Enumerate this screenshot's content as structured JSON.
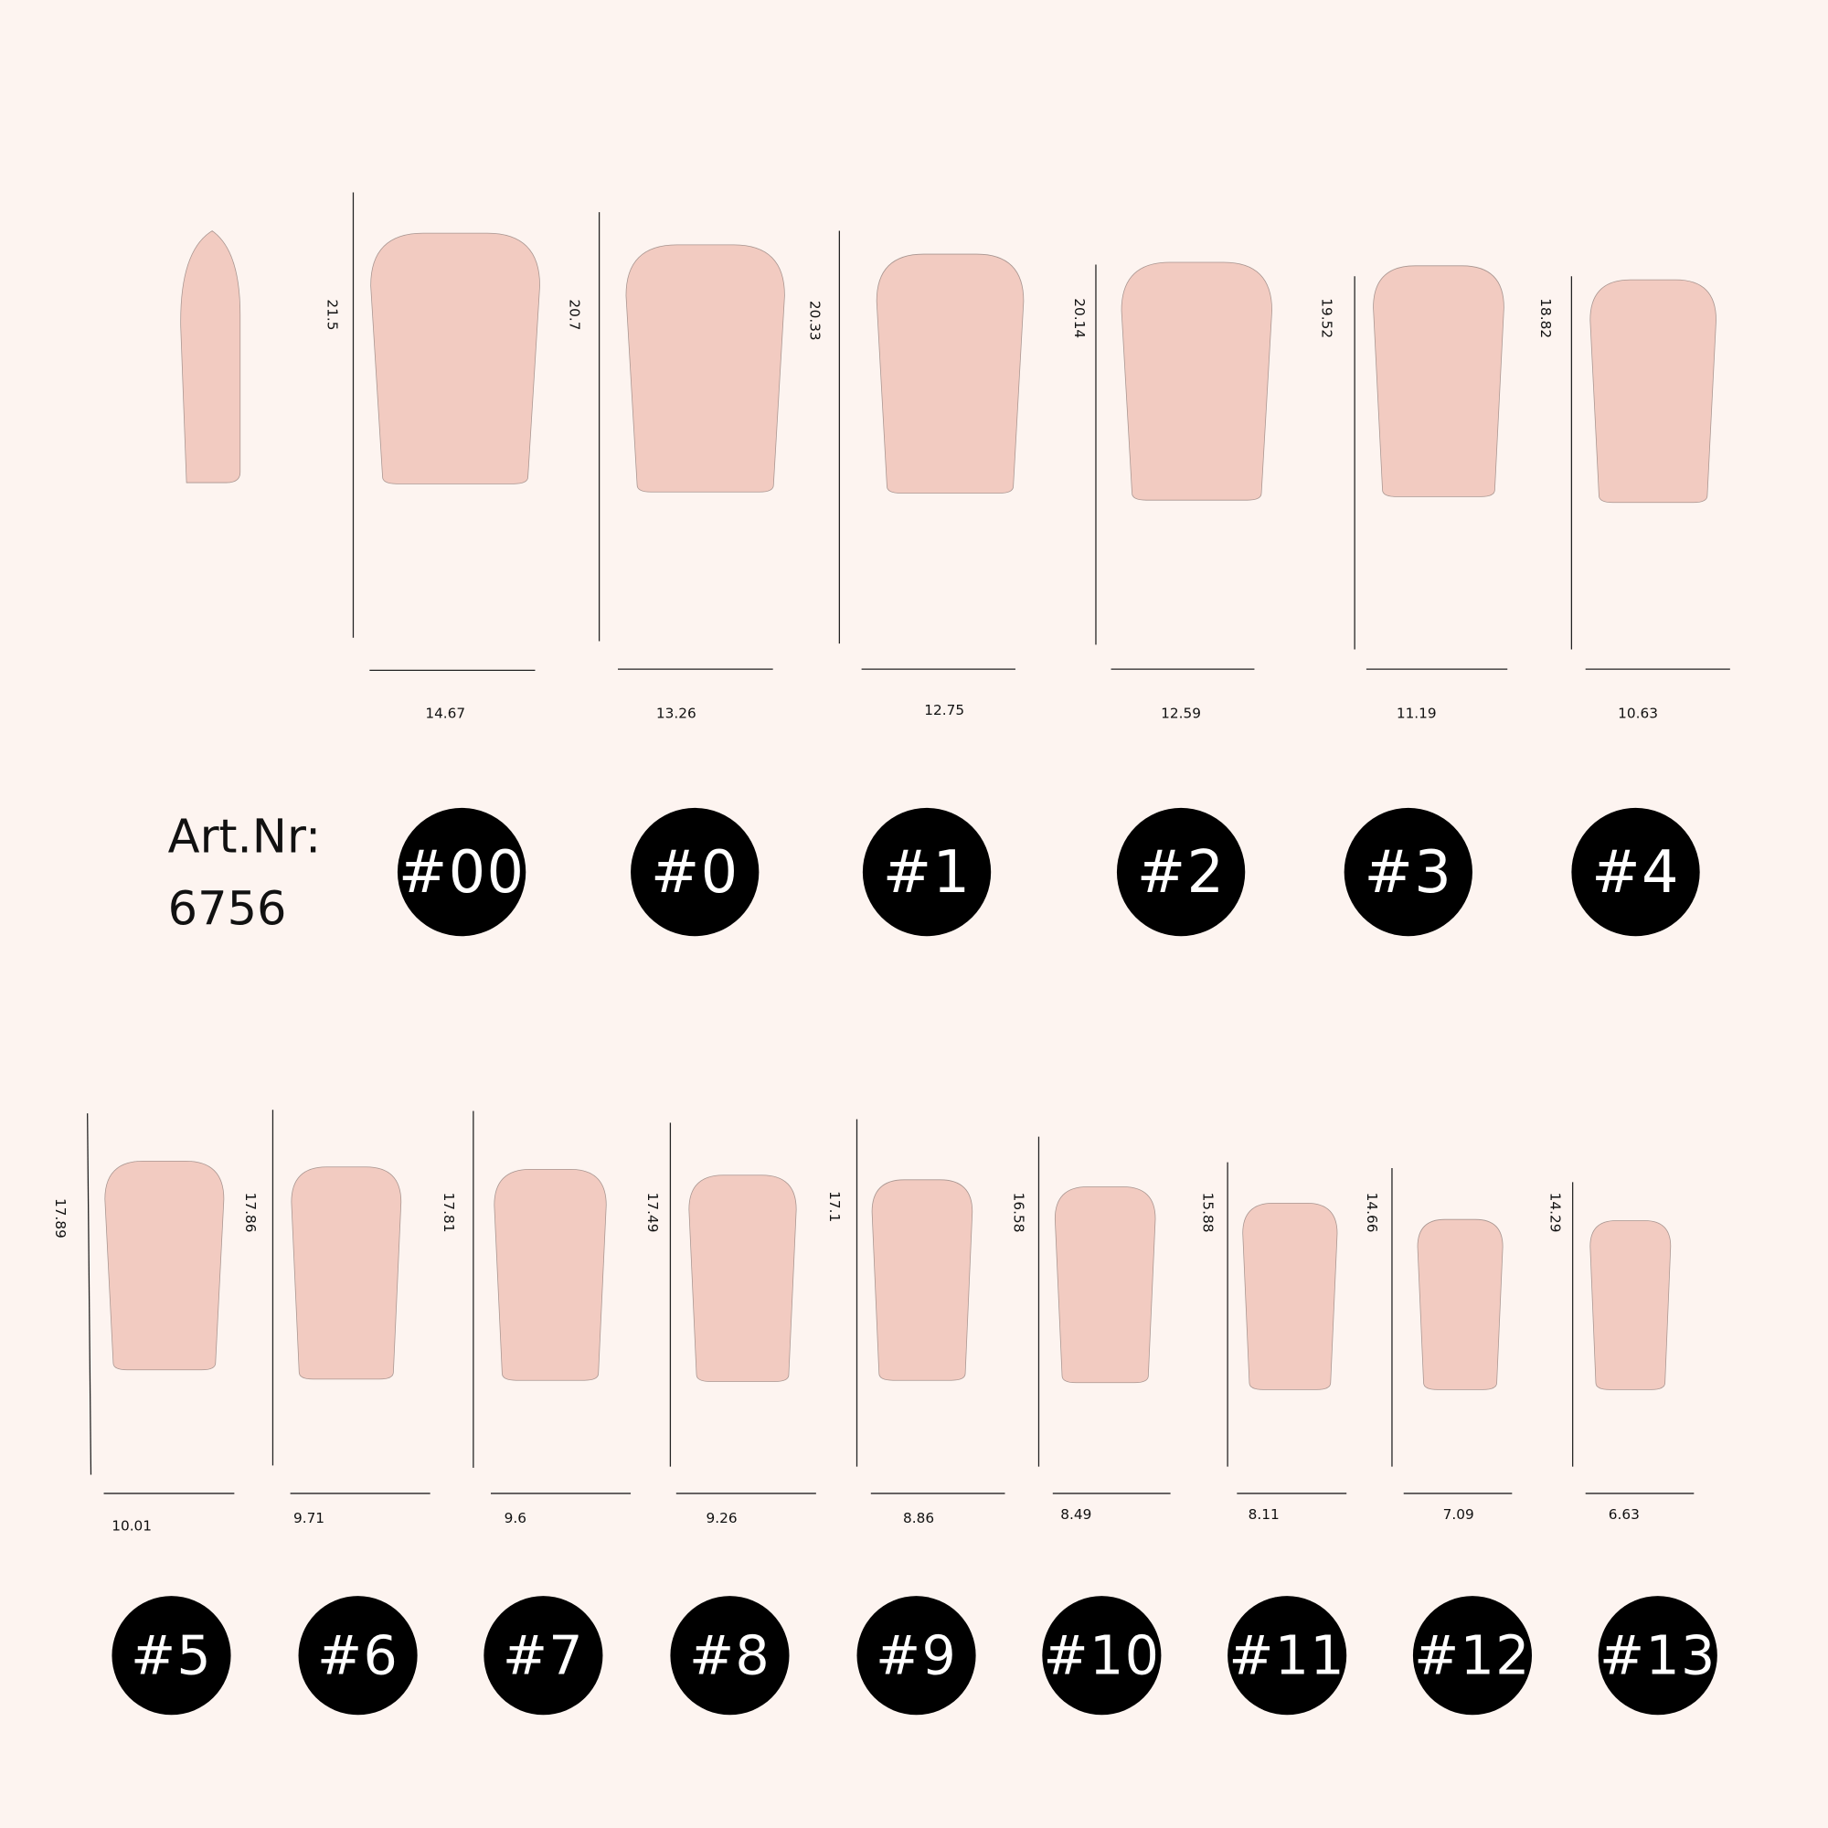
{
  "article": {
    "label": "Art.Nr:",
    "number": "6756"
  },
  "colors": {
    "background": "#fdf4f0",
    "nail_fill": "#f2cbc1",
    "nail_outline": "#a89590",
    "badge": "#000000",
    "badge_text": "#ffffff"
  },
  "sizes_top": [
    {
      "size": "#00",
      "width": "14.67",
      "length": "21.5"
    },
    {
      "size": "#0",
      "width": "13.26",
      "length": "20.7"
    },
    {
      "size": "#1",
      "width": "12.75",
      "length": "20.33"
    },
    {
      "size": "#2",
      "width": "12.59",
      "length": "20.14"
    },
    {
      "size": "#3",
      "width": "11.19",
      "length": "19.52"
    },
    {
      "size": "#4",
      "width": "10.63",
      "length": "18.82"
    }
  ],
  "sizes_bottom": [
    {
      "size": "#5",
      "width": "10.01",
      "length": "17.89"
    },
    {
      "size": "#6",
      "width": "9.71",
      "length": "17.86"
    },
    {
      "size": "#7",
      "width": "9.6",
      "length": "17.81"
    },
    {
      "size": "#8",
      "width": "9.26",
      "length": "17.49"
    },
    {
      "size": "#9",
      "width": "8.86",
      "length": "17.1"
    },
    {
      "size": "#10",
      "width": "8.49",
      "length": "16.58"
    },
    {
      "size": "#11",
      "width": "8.11",
      "length": "15.88"
    },
    {
      "size": "#12",
      "width": "7.09",
      "length": "14.66"
    },
    {
      "size": "#13",
      "width": "6.63",
      "length": "14.29"
    }
  ]
}
